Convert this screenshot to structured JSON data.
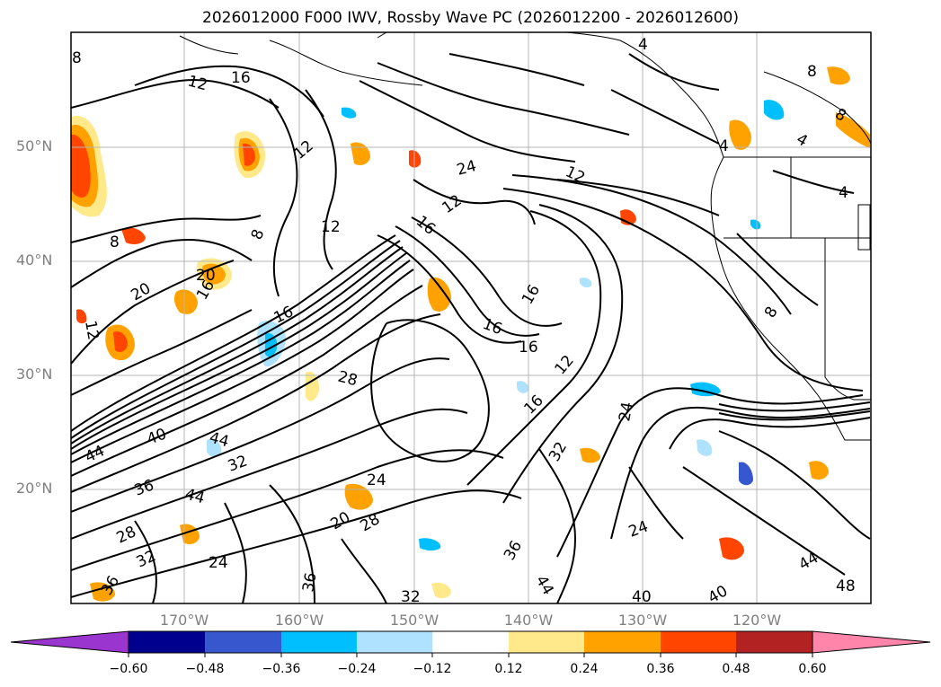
{
  "title": "2026012000 F000 IWV, Rossby Wave PC (2026012200 - 2026012600)",
  "lat_labels": [
    "50°N",
    "40°N",
    "30°N",
    "20°N"
  ],
  "lon_labels": [
    "170°W",
    "160°W",
    "150°W",
    "140°W",
    "130°W",
    "120°W"
  ],
  "colorbar": {
    "colors": [
      "#9a35cf",
      "#00008f",
      "#3757cf",
      "#00bfff",
      "#aee2ff",
      "#ffffff",
      "#ffe98a",
      "#ffa200",
      "#ff4500",
      "#b22222",
      "#ff85aa"
    ],
    "tick_labels": [
      "−0.60",
      "−0.48",
      "−0.36",
      "−0.24",
      "−0.12",
      "0.12",
      "0.24",
      "0.36",
      "0.48",
      "0.60"
    ]
  },
  "contour_labels": [
    {
      "text": "12"
    },
    {
      "text": "16"
    },
    {
      "text": "8"
    },
    {
      "text": "12"
    },
    {
      "text": "8"
    },
    {
      "text": "20"
    },
    {
      "text": "16"
    },
    {
      "text": "12"
    },
    {
      "text": "20"
    },
    {
      "text": "16"
    },
    {
      "text": "12"
    },
    {
      "text": "12"
    },
    {
      "text": "24"
    },
    {
      "text": "16"
    },
    {
      "text": "12"
    },
    {
      "text": "16"
    },
    {
      "text": "16"
    },
    {
      "text": "16"
    },
    {
      "text": "28"
    },
    {
      "text": "12"
    },
    {
      "text": "16"
    },
    {
      "text": "24"
    },
    {
      "text": "40"
    },
    {
      "text": "44"
    },
    {
      "text": "44"
    },
    {
      "text": "32"
    },
    {
      "text": "36"
    },
    {
      "text": "44"
    },
    {
      "text": "24"
    },
    {
      "text": "20"
    },
    {
      "text": "28"
    },
    {
      "text": "32"
    },
    {
      "text": "24"
    },
    {
      "text": "36"
    },
    {
      "text": "32"
    },
    {
      "text": "36"
    },
    {
      "text": "32"
    },
    {
      "text": "24"
    },
    {
      "text": "44"
    },
    {
      "text": "40"
    },
    {
      "text": "40"
    },
    {
      "text": "44"
    },
    {
      "text": "48"
    },
    {
      "text": "4"
    },
    {
      "text": "4"
    },
    {
      "text": "4"
    },
    {
      "text": "8"
    },
    {
      "text": "8"
    },
    {
      "text": "8"
    },
    {
      "text": "4"
    },
    {
      "text": "8"
    },
    {
      "text": "36"
    },
    {
      "text": "28"
    }
  ]
}
